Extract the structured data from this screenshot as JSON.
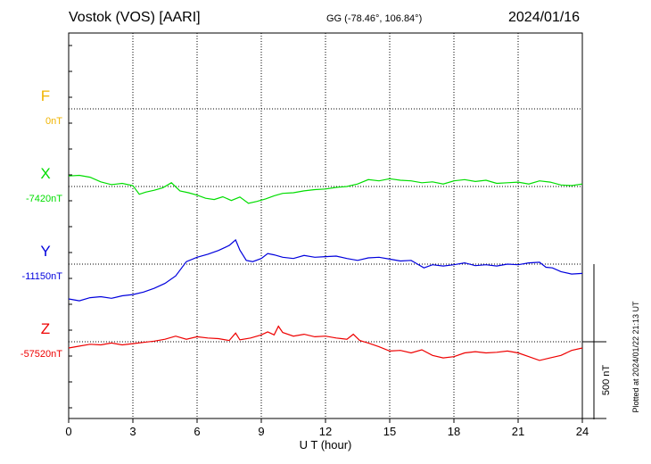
{
  "header": {
    "station": "Vostok (VOS)  [AARI]",
    "coords": "GG (-78.46°, 106.84°)",
    "date": "2024/01/16"
  },
  "side_note": "Plotted at 2024/01/22 21:13 UT",
  "chart_data": {
    "type": "line",
    "xlabel": "U T (hour)",
    "xlim": [
      0,
      24
    ],
    "xticks": [
      0,
      3,
      6,
      9,
      12,
      15,
      18,
      21,
      24
    ],
    "scale_bar_label": "500 nT",
    "scale_bar_nT": 500,
    "colors": {
      "F": "#f0b400",
      "X": "#00dd00",
      "Y": "#0000dd",
      "Z": "#ee0000"
    },
    "series": [
      {
        "name": "F",
        "baseline_label": "0nT",
        "points": []
      },
      {
        "name": "X",
        "baseline_label": "-7420nT",
        "points": [
          [
            0,
            34
          ],
          [
            0.5,
            36
          ],
          [
            1,
            30
          ],
          [
            1.5,
            15
          ],
          [
            2,
            6
          ],
          [
            2.5,
            10
          ],
          [
            3,
            3
          ],
          [
            3.3,
            -25
          ],
          [
            3.6,
            -18
          ],
          [
            4,
            -12
          ],
          [
            4.4,
            -4
          ],
          [
            4.8,
            12
          ],
          [
            5.2,
            -14
          ],
          [
            5.6,
            -20
          ],
          [
            6,
            -28
          ],
          [
            6.4,
            -38
          ],
          [
            6.8,
            -42
          ],
          [
            7.2,
            -33
          ],
          [
            7.6,
            -45
          ],
          [
            8,
            -34
          ],
          [
            8.4,
            -54
          ],
          [
            8.8,
            -48
          ],
          [
            9.2,
            -40
          ],
          [
            9.6,
            -30
          ],
          [
            10,
            -22
          ],
          [
            10.5,
            -20
          ],
          [
            11,
            -14
          ],
          [
            11.5,
            -10
          ],
          [
            12,
            -8
          ],
          [
            12.5,
            -3
          ],
          [
            13,
            0
          ],
          [
            13.5,
            8
          ],
          [
            14,
            22
          ],
          [
            14.5,
            18
          ],
          [
            15,
            25
          ],
          [
            15.5,
            20
          ],
          [
            16,
            18
          ],
          [
            16.5,
            12
          ],
          [
            17,
            15
          ],
          [
            17.5,
            8
          ],
          [
            18,
            18
          ],
          [
            18.5,
            22
          ],
          [
            19,
            16
          ],
          [
            19.5,
            20
          ],
          [
            20,
            10
          ],
          [
            20.5,
            12
          ],
          [
            21,
            14
          ],
          [
            21.5,
            8
          ],
          [
            22,
            18
          ],
          [
            22.5,
            14
          ],
          [
            23,
            5
          ],
          [
            23.5,
            3
          ],
          [
            24,
            8
          ]
        ]
      },
      {
        "name": "Y",
        "baseline_label": "-11150nT",
        "points": [
          [
            0,
            -112
          ],
          [
            0.5,
            -118
          ],
          [
            1,
            -108
          ],
          [
            1.5,
            -105
          ],
          [
            2,
            -110
          ],
          [
            2.5,
            -102
          ],
          [
            3,
            -98
          ],
          [
            3.5,
            -90
          ],
          [
            4,
            -78
          ],
          [
            4.5,
            -62
          ],
          [
            5,
            -38
          ],
          [
            5.5,
            8
          ],
          [
            6,
            22
          ],
          [
            6.5,
            32
          ],
          [
            7,
            44
          ],
          [
            7.5,
            60
          ],
          [
            7.8,
            78
          ],
          [
            8,
            45
          ],
          [
            8.3,
            12
          ],
          [
            8.6,
            8
          ],
          [
            9,
            18
          ],
          [
            9.3,
            34
          ],
          [
            9.6,
            30
          ],
          [
            10,
            22
          ],
          [
            10.5,
            18
          ],
          [
            11,
            28
          ],
          [
            11.5,
            22
          ],
          [
            12,
            24
          ],
          [
            12.5,
            26
          ],
          [
            13,
            18
          ],
          [
            13.5,
            12
          ],
          [
            14,
            20
          ],
          [
            14.5,
            22
          ],
          [
            15,
            16
          ],
          [
            15.5,
            10
          ],
          [
            16,
            12
          ],
          [
            16.3,
            0
          ],
          [
            16.6,
            -12
          ],
          [
            17,
            -2
          ],
          [
            17.5,
            -6
          ],
          [
            18,
            -2
          ],
          [
            18.5,
            4
          ],
          [
            19,
            -5
          ],
          [
            19.5,
            -2
          ],
          [
            20,
            -6
          ],
          [
            20.5,
            0
          ],
          [
            21,
            -2
          ],
          [
            21.5,
            4
          ],
          [
            22,
            6
          ],
          [
            22.3,
            -10
          ],
          [
            22.6,
            -12
          ],
          [
            23,
            -24
          ],
          [
            23.5,
            -32
          ],
          [
            24,
            -30
          ]
        ]
      },
      {
        "name": "Z",
        "baseline_label": "-57520nT",
        "points": [
          [
            0,
            -20
          ],
          [
            0.5,
            -14
          ],
          [
            1,
            -8
          ],
          [
            1.5,
            -10
          ],
          [
            2,
            -4
          ],
          [
            2.5,
            -10
          ],
          [
            3,
            -6
          ],
          [
            3.5,
            -2
          ],
          [
            4,
            2
          ],
          [
            4.5,
            8
          ],
          [
            5,
            18
          ],
          [
            5.5,
            8
          ],
          [
            6,
            16
          ],
          [
            6.5,
            12
          ],
          [
            7,
            10
          ],
          [
            7.5,
            4
          ],
          [
            7.8,
            28
          ],
          [
            8,
            6
          ],
          [
            8.5,
            12
          ],
          [
            9,
            22
          ],
          [
            9.3,
            32
          ],
          [
            9.6,
            22
          ],
          [
            9.8,
            50
          ],
          [
            10,
            30
          ],
          [
            10.5,
            18
          ],
          [
            11,
            24
          ],
          [
            11.5,
            16
          ],
          [
            12,
            18
          ],
          [
            12.5,
            12
          ],
          [
            13,
            8
          ],
          [
            13.3,
            24
          ],
          [
            13.6,
            4
          ],
          [
            14,
            -4
          ],
          [
            14.5,
            -16
          ],
          [
            15,
            -30
          ],
          [
            15.5,
            -28
          ],
          [
            16,
            -36
          ],
          [
            16.5,
            -26
          ],
          [
            17,
            -44
          ],
          [
            17.5,
            -52
          ],
          [
            18,
            -48
          ],
          [
            18.5,
            -36
          ],
          [
            19,
            -32
          ],
          [
            19.5,
            -36
          ],
          [
            20,
            -34
          ],
          [
            20.5,
            -30
          ],
          [
            21,
            -36
          ],
          [
            21.5,
            -48
          ],
          [
            22,
            -60
          ],
          [
            22.5,
            -52
          ],
          [
            23,
            -44
          ],
          [
            23.5,
            -28
          ],
          [
            24,
            -20
          ]
        ]
      }
    ]
  }
}
